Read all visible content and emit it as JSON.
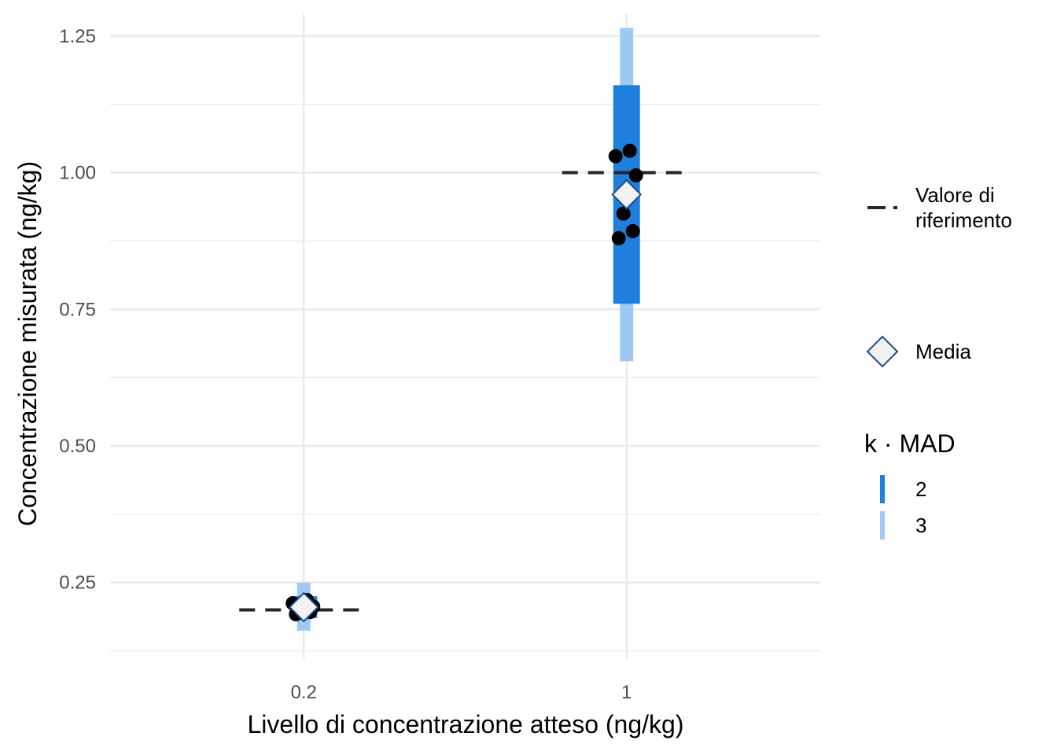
{
  "chart_data": {
    "type": "scatter",
    "title": "",
    "xlabel": "Livello di concentrazione atteso (ng/kg)",
    "ylabel": "Concentrazione misurata (ng/kg)",
    "x_axis": {
      "scale": "discrete",
      "categories": [
        "0.2",
        "1"
      ]
    },
    "y_axis": {
      "ylim": [
        0.11,
        1.29
      ],
      "ticks": [
        "0.25",
        "0.50",
        "0.75",
        "1.00",
        "1.25"
      ],
      "tick_values": [
        0.25,
        0.5,
        0.75,
        1.0,
        1.25
      ]
    },
    "grid": true,
    "groups": [
      {
        "category": "0.2",
        "reference_value": 0.2,
        "mean": 0.205,
        "bar_2mad": [
          0.185,
          0.225
        ],
        "bar_3mad": [
          0.162,
          0.25
        ],
        "points": [
          0.192,
          0.196,
          0.2,
          0.206,
          0.212,
          0.218
        ]
      },
      {
        "category": "1",
        "reference_value": 1.0,
        "mean": 0.96,
        "bar_2mad": [
          0.76,
          1.16
        ],
        "bar_3mad": [
          0.655,
          1.265
        ],
        "points": [
          0.88,
          0.893,
          0.925,
          0.995,
          1.03,
          1.04
        ]
      }
    ],
    "legend": {
      "placement": "right",
      "reference_label": "Valore di riferimento",
      "reference_lines": [
        "Valore di",
        "riferimento"
      ],
      "mean_label": "Media",
      "mad_title": "k · MAD",
      "mad_entries": [
        {
          "label": "2",
          "color": "#1f7fdc"
        },
        {
          "label": "3",
          "color": "#9ec9f2"
        }
      ]
    },
    "colors": {
      "bar_2mad": "#1f7fdc",
      "bar_3mad": "#9ec9f2",
      "points": "#000000",
      "mean_fill": "#f2f2f2",
      "mean_stroke": "#1c4f87",
      "reference_line": "#262626",
      "grid": "#ebebeb"
    }
  }
}
